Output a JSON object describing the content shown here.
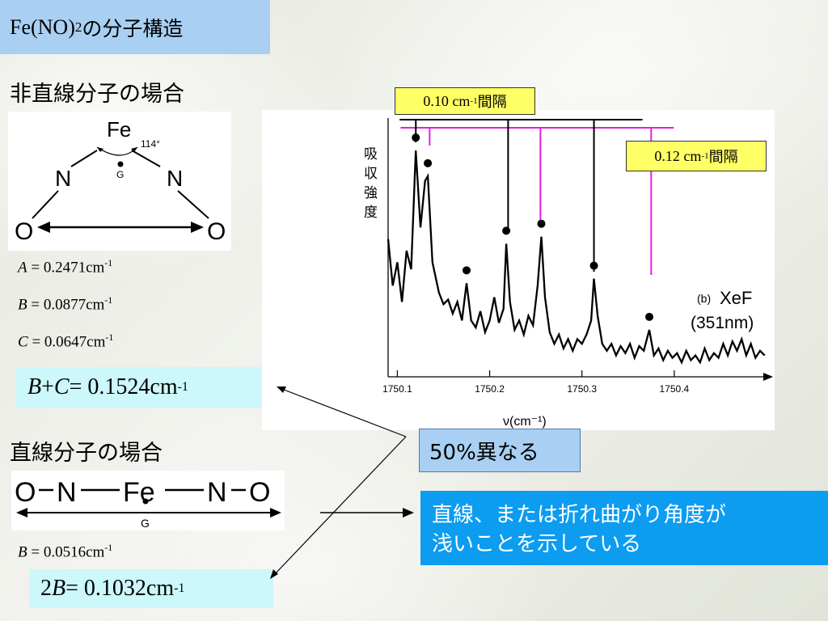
{
  "title": {
    "main": "Fe(NO)",
    "sub": "2",
    "suffix": "の分子構造"
  },
  "bent": {
    "heading": "非直線分子の場合",
    "atoms": {
      "fe": "Fe",
      "n_left": "N",
      "n_right": "N",
      "o_left": "O",
      "o_right": "O",
      "g": "G"
    },
    "angle": "114°",
    "constants": [
      {
        "sym": "A",
        "eq": " = 0.2471cm",
        "exp": "-1"
      },
      {
        "sym": "B",
        "eq": " = 0.0877cm",
        "exp": "-1"
      },
      {
        "sym": "C",
        "eq": " = 0.0647cm",
        "exp": "-1"
      }
    ],
    "sum": {
      "b": "B",
      "plus": " + ",
      "c": "C",
      "eq": " = 0.1524cm",
      "exp": "-1"
    }
  },
  "linear": {
    "heading": "直線分子の場合",
    "chain": {
      "o1": "O",
      "n1": "N",
      "fe": "Fe",
      "n2": "N",
      "o2": "O",
      "g": "G"
    },
    "constant": {
      "sym": "B",
      "eq": " = 0.0516cm",
      "exp": "-1"
    },
    "result": {
      "pre": "2",
      "sym": "B",
      "eq": " = 0.1032cm",
      "exp": "-1"
    }
  },
  "spectrum": {
    "ylabel": [
      "吸",
      "収",
      "強",
      "度"
    ],
    "panel": "(b)",
    "species": "XeF",
    "wavelength": "(351nm)",
    "xlabel": "ν(cm⁻¹)",
    "spacing_black": {
      "text": "0.10 cm",
      "exp": "-1",
      "suffix": "間隔"
    },
    "spacing_pink": {
      "text": "0.12 cm",
      "exp": "-1",
      "suffix": "間隔"
    }
  },
  "differ_note": "50%異なる",
  "conclusion": {
    "line1": "直線、または折れ曲がり角度が",
    "line2": "浅いことを示している"
  },
  "colors": {
    "pink": "#e020e0",
    "title_box": "#a9d0f3",
    "result_box": "#ccf7fb",
    "conclusion_box": "#0c9cf0",
    "note_box": "#ffff66"
  },
  "chart_data": {
    "type": "line",
    "x_ticks": [
      1750.1,
      1750.2,
      1750.3,
      1750.4
    ],
    "x_tick_labels": [
      "1750.1",
      "1750.2",
      "1750.3",
      "1750.4"
    ],
    "xlim": [
      1750.09,
      1750.5
    ],
    "ylim": [
      0,
      1
    ],
    "xlabel": "ν(cm⁻¹)",
    "ylabel": "吸収強度",
    "marked_peaks_x": [
      1750.12,
      1750.133,
      1750.175,
      1750.218,
      1750.256,
      1750.313,
      1750.373
    ],
    "marked_peaks_y": [
      0.93,
      0.82,
      0.36,
      0.53,
      0.56,
      0.38,
      0.16
    ],
    "black_series_x": [
      1750.12,
      1750.22,
      1750.313
    ],
    "pink_series_x": [
      1750.135,
      1750.255,
      1750.375
    ],
    "spectrum": {
      "x": [
        1750.09,
        1750.095,
        1750.1,
        1750.105,
        1750.11,
        1750.115,
        1750.12,
        1750.125,
        1750.13,
        1750.133,
        1750.138,
        1750.145,
        1750.15,
        1750.155,
        1750.16,
        1750.165,
        1750.17,
        1750.175,
        1750.18,
        1750.185,
        1750.19,
        1750.195,
        1750.2,
        1750.205,
        1750.21,
        1750.215,
        1750.218,
        1750.222,
        1750.227,
        1750.232,
        1750.237,
        1750.242,
        1750.247,
        1750.252,
        1750.256,
        1750.26,
        1750.265,
        1750.27,
        1750.275,
        1750.28,
        1750.285,
        1750.29,
        1750.295,
        1750.3,
        1750.305,
        1750.31,
        1750.313,
        1750.317,
        1750.322,
        1750.327,
        1750.332,
        1750.337,
        1750.342,
        1750.347,
        1750.352,
        1750.357,
        1750.362,
        1750.367,
        1750.373,
        1750.378,
        1750.383,
        1750.388,
        1750.393,
        1750.398,
        1750.403,
        1750.408,
        1750.413,
        1750.418,
        1750.423,
        1750.428,
        1750.433,
        1750.438,
        1750.443,
        1750.448,
        1750.453,
        1750.458,
        1750.463,
        1750.468,
        1750.473,
        1750.478,
        1750.483,
        1750.488,
        1750.493,
        1750.498
      ],
      "y": [
        0.55,
        0.35,
        0.45,
        0.28,
        0.5,
        0.42,
        0.93,
        0.6,
        0.8,
        0.82,
        0.45,
        0.32,
        0.27,
        0.29,
        0.23,
        0.28,
        0.2,
        0.36,
        0.2,
        0.17,
        0.24,
        0.15,
        0.2,
        0.3,
        0.19,
        0.25,
        0.53,
        0.28,
        0.16,
        0.2,
        0.14,
        0.22,
        0.18,
        0.35,
        0.56,
        0.3,
        0.15,
        0.1,
        0.14,
        0.08,
        0.12,
        0.07,
        0.12,
        0.1,
        0.14,
        0.2,
        0.38,
        0.22,
        0.1,
        0.07,
        0.1,
        0.05,
        0.09,
        0.06,
        0.1,
        0.04,
        0.09,
        0.07,
        0.16,
        0.05,
        0.08,
        0.03,
        0.07,
        0.04,
        0.06,
        0.02,
        0.07,
        0.03,
        0.05,
        0.02,
        0.08,
        0.03,
        0.06,
        0.04,
        0.1,
        0.05,
        0.11,
        0.07,
        0.12,
        0.05,
        0.1,
        0.04,
        0.07,
        0.05
      ]
    }
  }
}
